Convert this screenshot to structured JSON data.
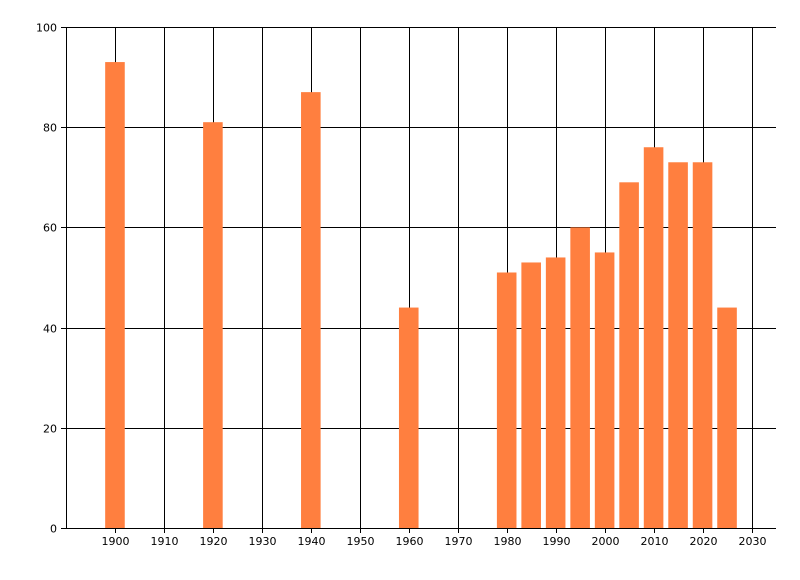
{
  "chart_data": {
    "type": "bar",
    "title": "",
    "xlabel": "",
    "ylabel": "",
    "xlim": [
      1890,
      2035
    ],
    "ylim": [
      0,
      100
    ],
    "grid": true,
    "x_ticks": [
      1900,
      1910,
      1920,
      1930,
      1940,
      1950,
      1960,
      1970,
      1980,
      1990,
      2000,
      2010,
      2020,
      2030
    ],
    "y_ticks": [
      0,
      20,
      40,
      60,
      80,
      100
    ],
    "bar_width_years": 4,
    "colors": {
      "bar": "#ff7f3f",
      "grid": "#000000",
      "axis": "#000000"
    },
    "series": [
      {
        "x": [
          1900,
          1920,
          1940,
          1960,
          1980,
          1985,
          1990,
          1995,
          2000,
          2005,
          2010,
          2015,
          2020,
          2025
        ],
        "values": [
          93,
          81,
          87,
          44,
          51,
          53,
          54,
          60,
          55,
          69,
          76,
          73,
          73,
          44
        ]
      }
    ]
  }
}
